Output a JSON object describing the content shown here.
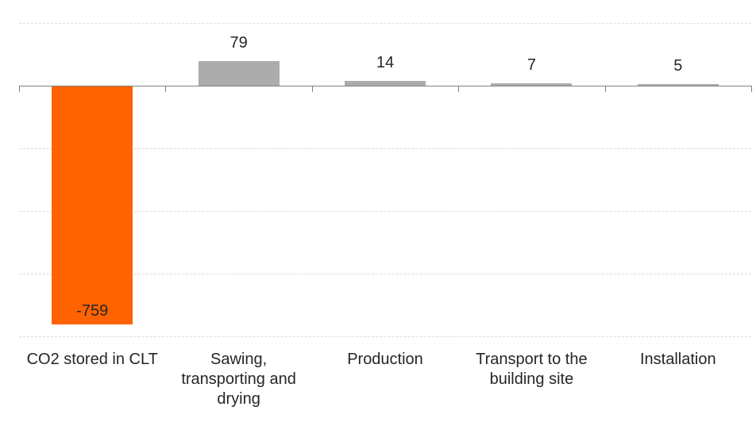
{
  "chart_data": {
    "type": "bar",
    "title": "",
    "xlabel": "",
    "ylabel": "",
    "categories": [
      "CO2 stored in CLT",
      "Sawing, transporting and drying",
      "Production",
      "Transport to the building site",
      "Installation"
    ],
    "values": [
      -759,
      79,
      14,
      7,
      5
    ],
    "data_labels": [
      "-759",
      "79",
      "14",
      "7",
      "5"
    ],
    "label_lines": [
      [
        "CO2 stored in CLT"
      ],
      [
        "Sawing,",
        "transporting and",
        "drying"
      ],
      [
        "Production"
      ],
      [
        "Transport to the",
        "building site"
      ],
      [
        "Installation"
      ]
    ],
    "label_positions": [
      "inside-end",
      "outside-end",
      "outside-end",
      "outside-end",
      "outside-end"
    ],
    "bar_colors": [
      "#FF6200",
      "#ACACAC",
      "#ACACAC",
      "#ACACAC",
      "#ACACAC"
    ],
    "ylim": [
      -800,
      200
    ],
    "gridline_values": [
      200,
      -200,
      -400,
      -600,
      -800
    ],
    "grid": true,
    "legend": false,
    "colors": {
      "negative_bar": "#FF6200",
      "positive_bar": "#ACACAC",
      "axis": "#808080",
      "gridline": "#DCDCDC",
      "text": "#262626",
      "background": "#FFFFFF"
    }
  }
}
